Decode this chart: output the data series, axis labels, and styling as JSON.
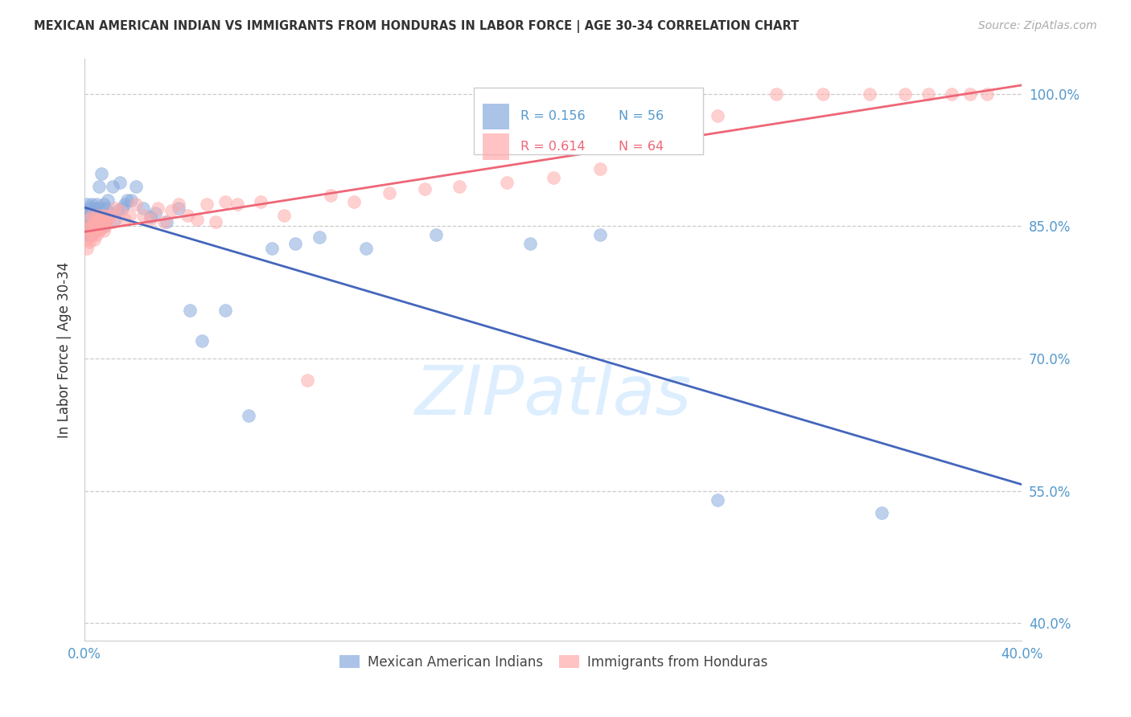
{
  "title": "MEXICAN AMERICAN INDIAN VS IMMIGRANTS FROM HONDURAS IN LABOR FORCE | AGE 30-34 CORRELATION CHART",
  "source": "Source: ZipAtlas.com",
  "ylabel": "In Labor Force | Age 30-34",
  "yticks": [
    "100.0%",
    "85.0%",
    "70.0%",
    "55.0%",
    "40.0%"
  ],
  "ytick_vals": [
    1.0,
    0.85,
    0.7,
    0.55,
    0.4
  ],
  "xlim": [
    0.0,
    0.4
  ],
  "ylim": [
    0.38,
    1.04
  ],
  "legend_blue_label": "Mexican American Indians",
  "legend_pink_label": "Immigrants from Honduras",
  "blue_R": "R = 0.156",
  "blue_N": "N = 56",
  "pink_R": "R = 0.614",
  "pink_N": "N = 64",
  "blue_color": "#88AADD",
  "pink_color": "#FFAAAA",
  "blue_line_color": "#4466BB",
  "pink_line_color": "#EE6677",
  "watermark": "ZIPatlas",
  "watermark_color": "#DDEEFF",
  "blue_x": [
    0.001,
    0.001,
    0.001,
    0.001,
    0.002,
    0.002,
    0.002,
    0.002,
    0.003,
    0.003,
    0.003,
    0.003,
    0.004,
    0.004,
    0.004,
    0.005,
    0.005,
    0.005,
    0.006,
    0.006,
    0.006,
    0.007,
    0.007,
    0.008,
    0.008,
    0.009,
    0.009,
    0.01,
    0.011,
    0.012,
    0.013,
    0.014,
    0.015,
    0.016,
    0.017,
    0.018,
    0.02,
    0.022,
    0.025,
    0.028,
    0.03,
    0.035,
    0.04,
    0.045,
    0.05,
    0.06,
    0.07,
    0.08,
    0.09,
    0.1,
    0.12,
    0.15,
    0.19,
    0.22,
    0.27,
    0.34
  ],
  "blue_y": [
    0.875,
    0.865,
    0.855,
    0.84,
    0.87,
    0.86,
    0.85,
    0.84,
    0.875,
    0.865,
    0.855,
    0.84,
    0.87,
    0.858,
    0.845,
    0.875,
    0.862,
    0.848,
    0.87,
    0.858,
    0.895,
    0.91,
    0.865,
    0.875,
    0.85,
    0.87,
    0.855,
    0.88,
    0.865,
    0.895,
    0.858,
    0.868,
    0.9,
    0.87,
    0.875,
    0.88,
    0.88,
    0.895,
    0.87,
    0.86,
    0.865,
    0.855,
    0.87,
    0.755,
    0.72,
    0.755,
    0.635,
    0.825,
    0.83,
    0.838,
    0.825,
    0.84,
    0.83,
    0.84,
    0.54,
    0.525
  ],
  "pink_x": [
    0.001,
    0.001,
    0.001,
    0.002,
    0.002,
    0.002,
    0.003,
    0.003,
    0.003,
    0.004,
    0.004,
    0.004,
    0.005,
    0.005,
    0.005,
    0.006,
    0.006,
    0.007,
    0.007,
    0.008,
    0.008,
    0.009,
    0.009,
    0.01,
    0.011,
    0.012,
    0.013,
    0.015,
    0.017,
    0.019,
    0.022,
    0.025,
    0.028,
    0.031,
    0.034,
    0.037,
    0.04,
    0.044,
    0.048,
    0.052,
    0.056,
    0.06,
    0.065,
    0.075,
    0.085,
    0.095,
    0.105,
    0.115,
    0.13,
    0.145,
    0.16,
    0.18,
    0.2,
    0.22,
    0.245,
    0.27,
    0.295,
    0.315,
    0.335,
    0.35,
    0.36,
    0.37,
    0.378,
    0.385
  ],
  "pink_y": [
    0.835,
    0.848,
    0.825,
    0.845,
    0.858,
    0.832,
    0.85,
    0.862,
    0.84,
    0.855,
    0.845,
    0.835,
    0.862,
    0.85,
    0.84,
    0.858,
    0.845,
    0.862,
    0.848,
    0.855,
    0.845,
    0.862,
    0.85,
    0.858,
    0.862,
    0.855,
    0.87,
    0.868,
    0.858,
    0.862,
    0.875,
    0.862,
    0.858,
    0.87,
    0.855,
    0.868,
    0.875,
    0.862,
    0.858,
    0.875,
    0.855,
    0.878,
    0.875,
    0.878,
    0.862,
    0.675,
    0.885,
    0.878,
    0.888,
    0.892,
    0.895,
    0.9,
    0.905,
    0.915,
    0.955,
    0.975,
    1.0,
    1.0,
    1.0,
    1.0,
    1.0,
    1.0,
    1.0,
    1.0
  ]
}
